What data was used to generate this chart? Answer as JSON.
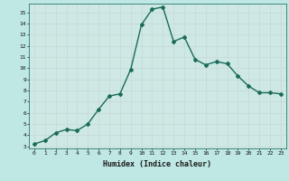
{
  "x": [
    0,
    1,
    2,
    3,
    4,
    5,
    6,
    7,
    8,
    9,
    10,
    11,
    12,
    13,
    14,
    15,
    16,
    17,
    18,
    19,
    20,
    21,
    22,
    23
  ],
  "y": [
    3.2,
    3.5,
    4.2,
    4.5,
    4.4,
    5.0,
    6.3,
    7.5,
    7.7,
    9.9,
    13.9,
    15.3,
    15.5,
    12.4,
    12.8,
    10.8,
    10.3,
    10.6,
    10.4,
    9.3,
    8.4,
    7.8,
    7.8,
    7.7
  ],
  "line_color": "#1a6b5a",
  "marker": "D",
  "marker_size": 2.0,
  "xlabel": "Humidex (Indice chaleur)",
  "ylim": [
    2.8,
    15.8
  ],
  "xlim": [
    -0.5,
    23.5
  ],
  "yticks": [
    3,
    4,
    5,
    6,
    7,
    8,
    9,
    10,
    11,
    12,
    13,
    14,
    15
  ],
  "xticks": [
    0,
    1,
    2,
    3,
    4,
    5,
    6,
    7,
    8,
    9,
    10,
    11,
    12,
    13,
    14,
    15,
    16,
    17,
    18,
    19,
    20,
    21,
    22,
    23
  ],
  "background_color": "#bfe8e4",
  "grid_color": "#c8d8d6",
  "plot_bg_color": "#cde8e5",
  "line_width": 1.0
}
